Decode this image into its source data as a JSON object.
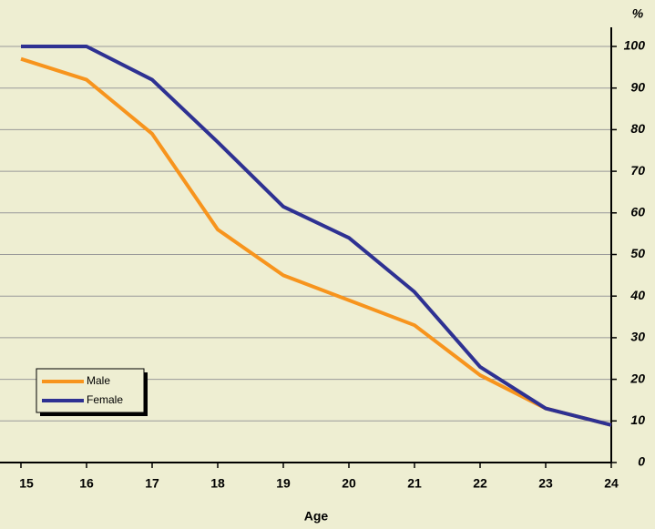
{
  "chart_data": {
    "type": "line",
    "x": [
      15,
      16,
      17,
      18,
      19,
      20,
      21,
      22,
      23,
      24
    ],
    "xlim": [
      15,
      24
    ],
    "xticks": [
      15,
      16,
      17,
      18,
      19,
      20,
      21,
      22,
      23,
      24
    ],
    "xlabel": "Age",
    "ylabel": "%",
    "ylim": [
      0,
      100
    ],
    "yticks": [
      0,
      10,
      20,
      30,
      40,
      50,
      60,
      70,
      80,
      90,
      100
    ],
    "grid": true,
    "legend": "lower left",
    "series": [
      {
        "name": "Male",
        "color": "#f7941d",
        "values": [
          97,
          92,
          79,
          56,
          45,
          39,
          33,
          21,
          13,
          9
        ]
      },
      {
        "name": "Female",
        "color": "#2e3192",
        "values": [
          100,
          100,
          92,
          77,
          61.5,
          54,
          41,
          23,
          13,
          9
        ]
      }
    ]
  }
}
